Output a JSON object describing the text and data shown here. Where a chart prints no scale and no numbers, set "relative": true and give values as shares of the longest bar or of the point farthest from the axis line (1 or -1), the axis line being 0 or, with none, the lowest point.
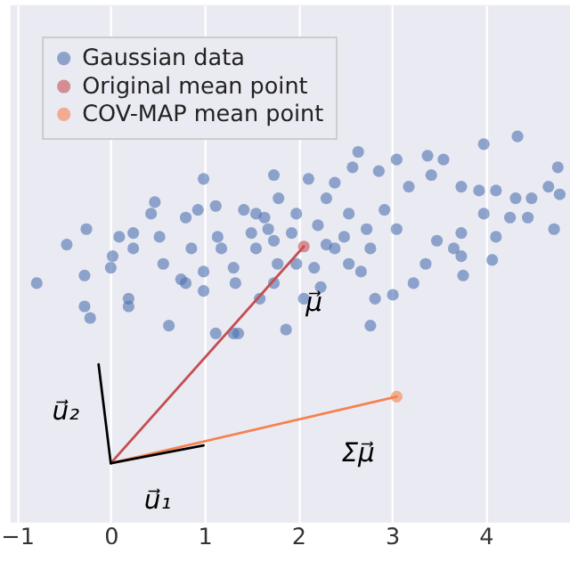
{
  "chart_data": {
    "type": "scatter",
    "relative": true,
    "xlim": [
      -1.07,
      4.9
    ],
    "xticks": [
      -1,
      0,
      1,
      2,
      3,
      4
    ],
    "tick_labels": "x",
    "grid": "x",
    "legend": "top left",
    "marker": "circle",
    "series": [
      {
        "name": "Gaussian data",
        "color": "#4c72b0",
        "x": [
          -0.79,
          -0.47,
          -0.26,
          -0.28,
          -0.28,
          -0.22,
          0.0,
          0.09,
          0.02,
          0.24,
          0.24,
          0.19,
          0.19,
          0.47,
          0.43,
          0.52,
          0.56,
          0.75,
          0.8,
          0.62,
          0.99,
          0.8,
          0.93,
          0.86,
          0.99,
          0.99,
          1.12,
          1.14,
          1.18,
          1.31,
          1.33,
          1.12,
          1.31,
          1.36,
          1.42,
          1.5,
          1.55,
          1.59,
          1.68,
          1.74,
          1.79,
          1.78,
          1.74,
          1.87,
          1.64,
          4.34,
          3.98,
          4.77,
          3.38,
          3.05,
          2.64,
          2.58,
          2.86,
          3.42,
          3.55,
          3.18,
          3.74,
          3.93,
          4.11,
          4.32,
          4.49,
          4.67,
          4.79,
          3.98,
          4.26,
          4.45,
          4.73,
          4.11,
          3.74,
          3.48,
          3.66,
          3.36,
          3.74,
          4.07,
          3.76,
          3.23,
          3.01,
          2.82,
          2.77,
          2.24,
          2.06,
          2.54,
          2.73,
          2.54,
          2.3,
          2.11,
          2.39,
          2.92,
          3.05,
          2.3,
          2.17,
          2.67,
          1.98,
          1.98,
          1.93,
          2.21,
          2.49,
          2.39,
          2.77,
          1.74,
          1.55
        ],
        "values": [
          0.62,
          0.72,
          0.76,
          0.64,
          0.56,
          0.53,
          0.66,
          0.74,
          0.69,
          0.75,
          0.71,
          0.58,
          0.56,
          0.83,
          0.8,
          0.74,
          0.67,
          0.63,
          0.62,
          0.51,
          0.89,
          0.79,
          0.81,
          0.71,
          0.65,
          0.6,
          0.82,
          0.74,
          0.71,
          0.66,
          0.62,
          0.49,
          0.49,
          0.49,
          0.81,
          0.75,
          0.71,
          0.58,
          0.76,
          0.9,
          0.84,
          0.67,
          0.62,
          0.5,
          0.79,
          1.0,
          0.98,
          0.92,
          0.95,
          0.94,
          0.96,
          0.92,
          0.91,
          0.9,
          0.94,
          0.87,
          0.87,
          0.86,
          0.86,
          0.84,
          0.84,
          0.87,
          0.85,
          0.8,
          0.79,
          0.79,
          0.76,
          0.74,
          0.75,
          0.73,
          0.71,
          0.67,
          0.69,
          0.68,
          0.64,
          0.62,
          0.59,
          0.58,
          0.51,
          0.61,
          0.58,
          0.67,
          0.76,
          0.8,
          0.84,
          0.89,
          0.88,
          0.81,
          0.76,
          0.72,
          0.66,
          0.65,
          0.8,
          0.67,
          0.75,
          0.77,
          0.74,
          0.71,
          0.71,
          0.73,
          0.8
        ]
      },
      {
        "name": "Original mean point",
        "color": "#c44e52",
        "x": [
          2.06
        ],
        "values": [
          0.715
        ]
      },
      {
        "name": "COV-MAP mean point",
        "color": "#f5824f",
        "x": [
          3.05
        ],
        "values": [
          0.326
        ]
      },
      {
        "type": "line",
        "color": "#c44e52",
        "line_style": "solid",
        "marker": "none",
        "x": [
          0,
          2.06
        ],
        "values": [
          0.154,
          0.715
        ]
      },
      {
        "type": "line",
        "color": "#f5824f",
        "line_style": "solid",
        "marker": "none",
        "x": [
          0,
          3.05
        ],
        "values": [
          0.154,
          0.326
        ]
      },
      {
        "type": "line",
        "color": "#000000",
        "line_style": "solid",
        "marker": "none",
        "x": [
          0,
          0.99
        ],
        "values": [
          0.154,
          0.2
        ]
      },
      {
        "type": "line",
        "color": "#000000",
        "line_style": "solid",
        "marker": "none",
        "x": [
          -0.13,
          0
        ],
        "values": [
          0.41,
          0.154
        ]
      }
    ],
    "annotations": [
      {
        "text": "μ⃗",
        "x": 2.17,
        "y": 0.57
      },
      {
        "text": "Σμ⃗",
        "x": 2.64,
        "y": 0.3
      },
      {
        "text": "u⃗₂",
        "x": -0.07,
        "y": 0.29
      },
      {
        "text": "u⃗₁",
        "x": 0.5,
        "y": 0.177
      }
    ]
  }
}
